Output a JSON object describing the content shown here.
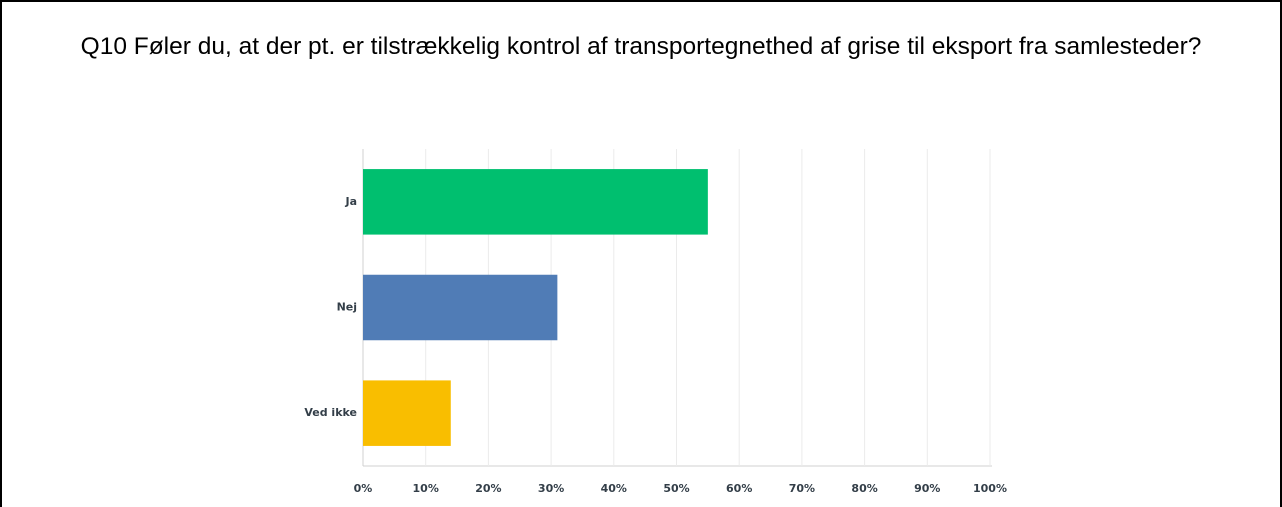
{
  "chart_data": {
    "type": "bar",
    "orientation": "horizontal",
    "title": "Q10 Føler du, at der pt. er tilstrækkelig kontrol af transportegnethed  af grise til eksport fra samlesteder?",
    "categories": [
      "Ja",
      "Nej",
      "Ved ikke"
    ],
    "values": [
      55,
      31,
      14
    ],
    "colors": [
      "#00bf6f",
      "#507cb6",
      "#f9be00"
    ],
    "xlim": [
      0,
      100
    ],
    "xticks": [
      {
        "value": 0,
        "label": "0%"
      },
      {
        "value": 10,
        "label": "10%"
      },
      {
        "value": 20,
        "label": "20%"
      },
      {
        "value": 30,
        "label": "30%"
      },
      {
        "value": 40,
        "label": "40%"
      },
      {
        "value": 50,
        "label": "50%"
      },
      {
        "value": 60,
        "label": "60%"
      },
      {
        "value": 70,
        "label": "70%"
      },
      {
        "value": 80,
        "label": "80%"
      },
      {
        "value": 90,
        "label": "90%"
      },
      {
        "value": 100,
        "label": "100%"
      }
    ],
    "grid": true
  }
}
